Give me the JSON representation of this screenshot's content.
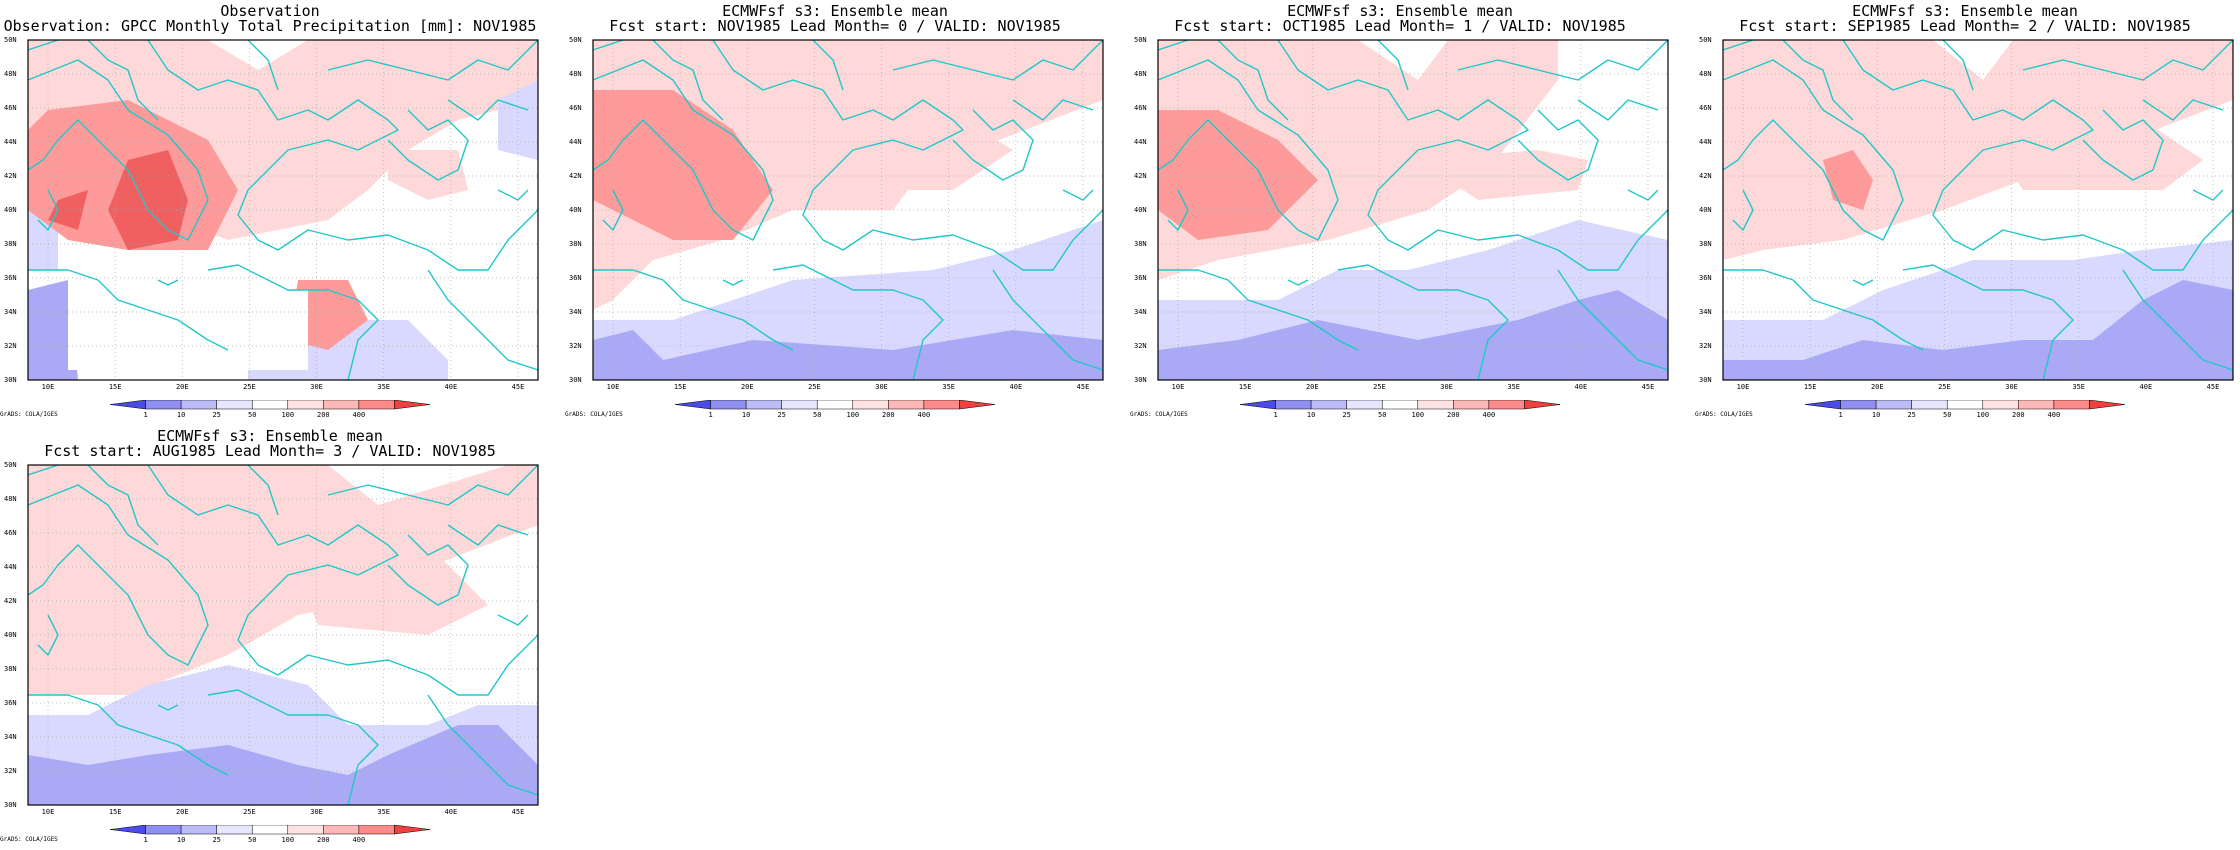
{
  "colors": {
    "coast": "#22c7c7",
    "grid": "#aaaaaa",
    "wet_light": "#ffd9d9",
    "wet_mid": "#ff9a9a",
    "wet_high": "#f06060",
    "dry_light": "#d9d9ff",
    "dry_mid": "#a9a9f5",
    "dry_strong": "#7a7af0"
  },
  "lat_ticks": [
    "50N",
    "48N",
    "46N",
    "44N",
    "42N",
    "40N",
    "38N",
    "36N",
    "34N",
    "32N",
    "30N"
  ],
  "lon_ticks": [
    "10E",
    "15E",
    "20E",
    "25E",
    "30E",
    "35E",
    "40E",
    "45E"
  ],
  "colorbar": {
    "labels": [
      "1",
      "10",
      "25",
      "50",
      "100",
      "200",
      "400"
    ],
    "colors": [
      "#4b4bea",
      "#8f8ff2",
      "#bcbcf8",
      "#e6e6ff",
      "#ffffff",
      "#ffe2e2",
      "#ffb8b8",
      "#ff8a8a",
      "#f04040"
    ]
  },
  "footer": "GrADS: COLA/IGES",
  "panels": [
    {
      "line1": "Observation",
      "line2": "Observation: GPCC Monthly Total Precipitation [mm]: NOV1985"
    },
    {
      "line1": "ECMWFsf s3: Ensemble mean",
      "line2": "Fcst start: NOV1985  Lead Month= 0 / VALID: NOV1985"
    },
    {
      "line1": "ECMWFsf s3: Ensemble mean",
      "line2": "Fcst start: OCT1985  Lead Month= 1 / VALID: NOV1985"
    },
    {
      "line1": "ECMWFsf s3: Ensemble mean",
      "line2": "Fcst start: SEP1985  Lead Month= 2 / VALID: NOV1985"
    },
    {
      "line1": "ECMWFsf s3: Ensemble mean",
      "line2": "Fcst start: AUG1985  Lead Month= 3 / VALID: NOV1985"
    }
  ]
}
